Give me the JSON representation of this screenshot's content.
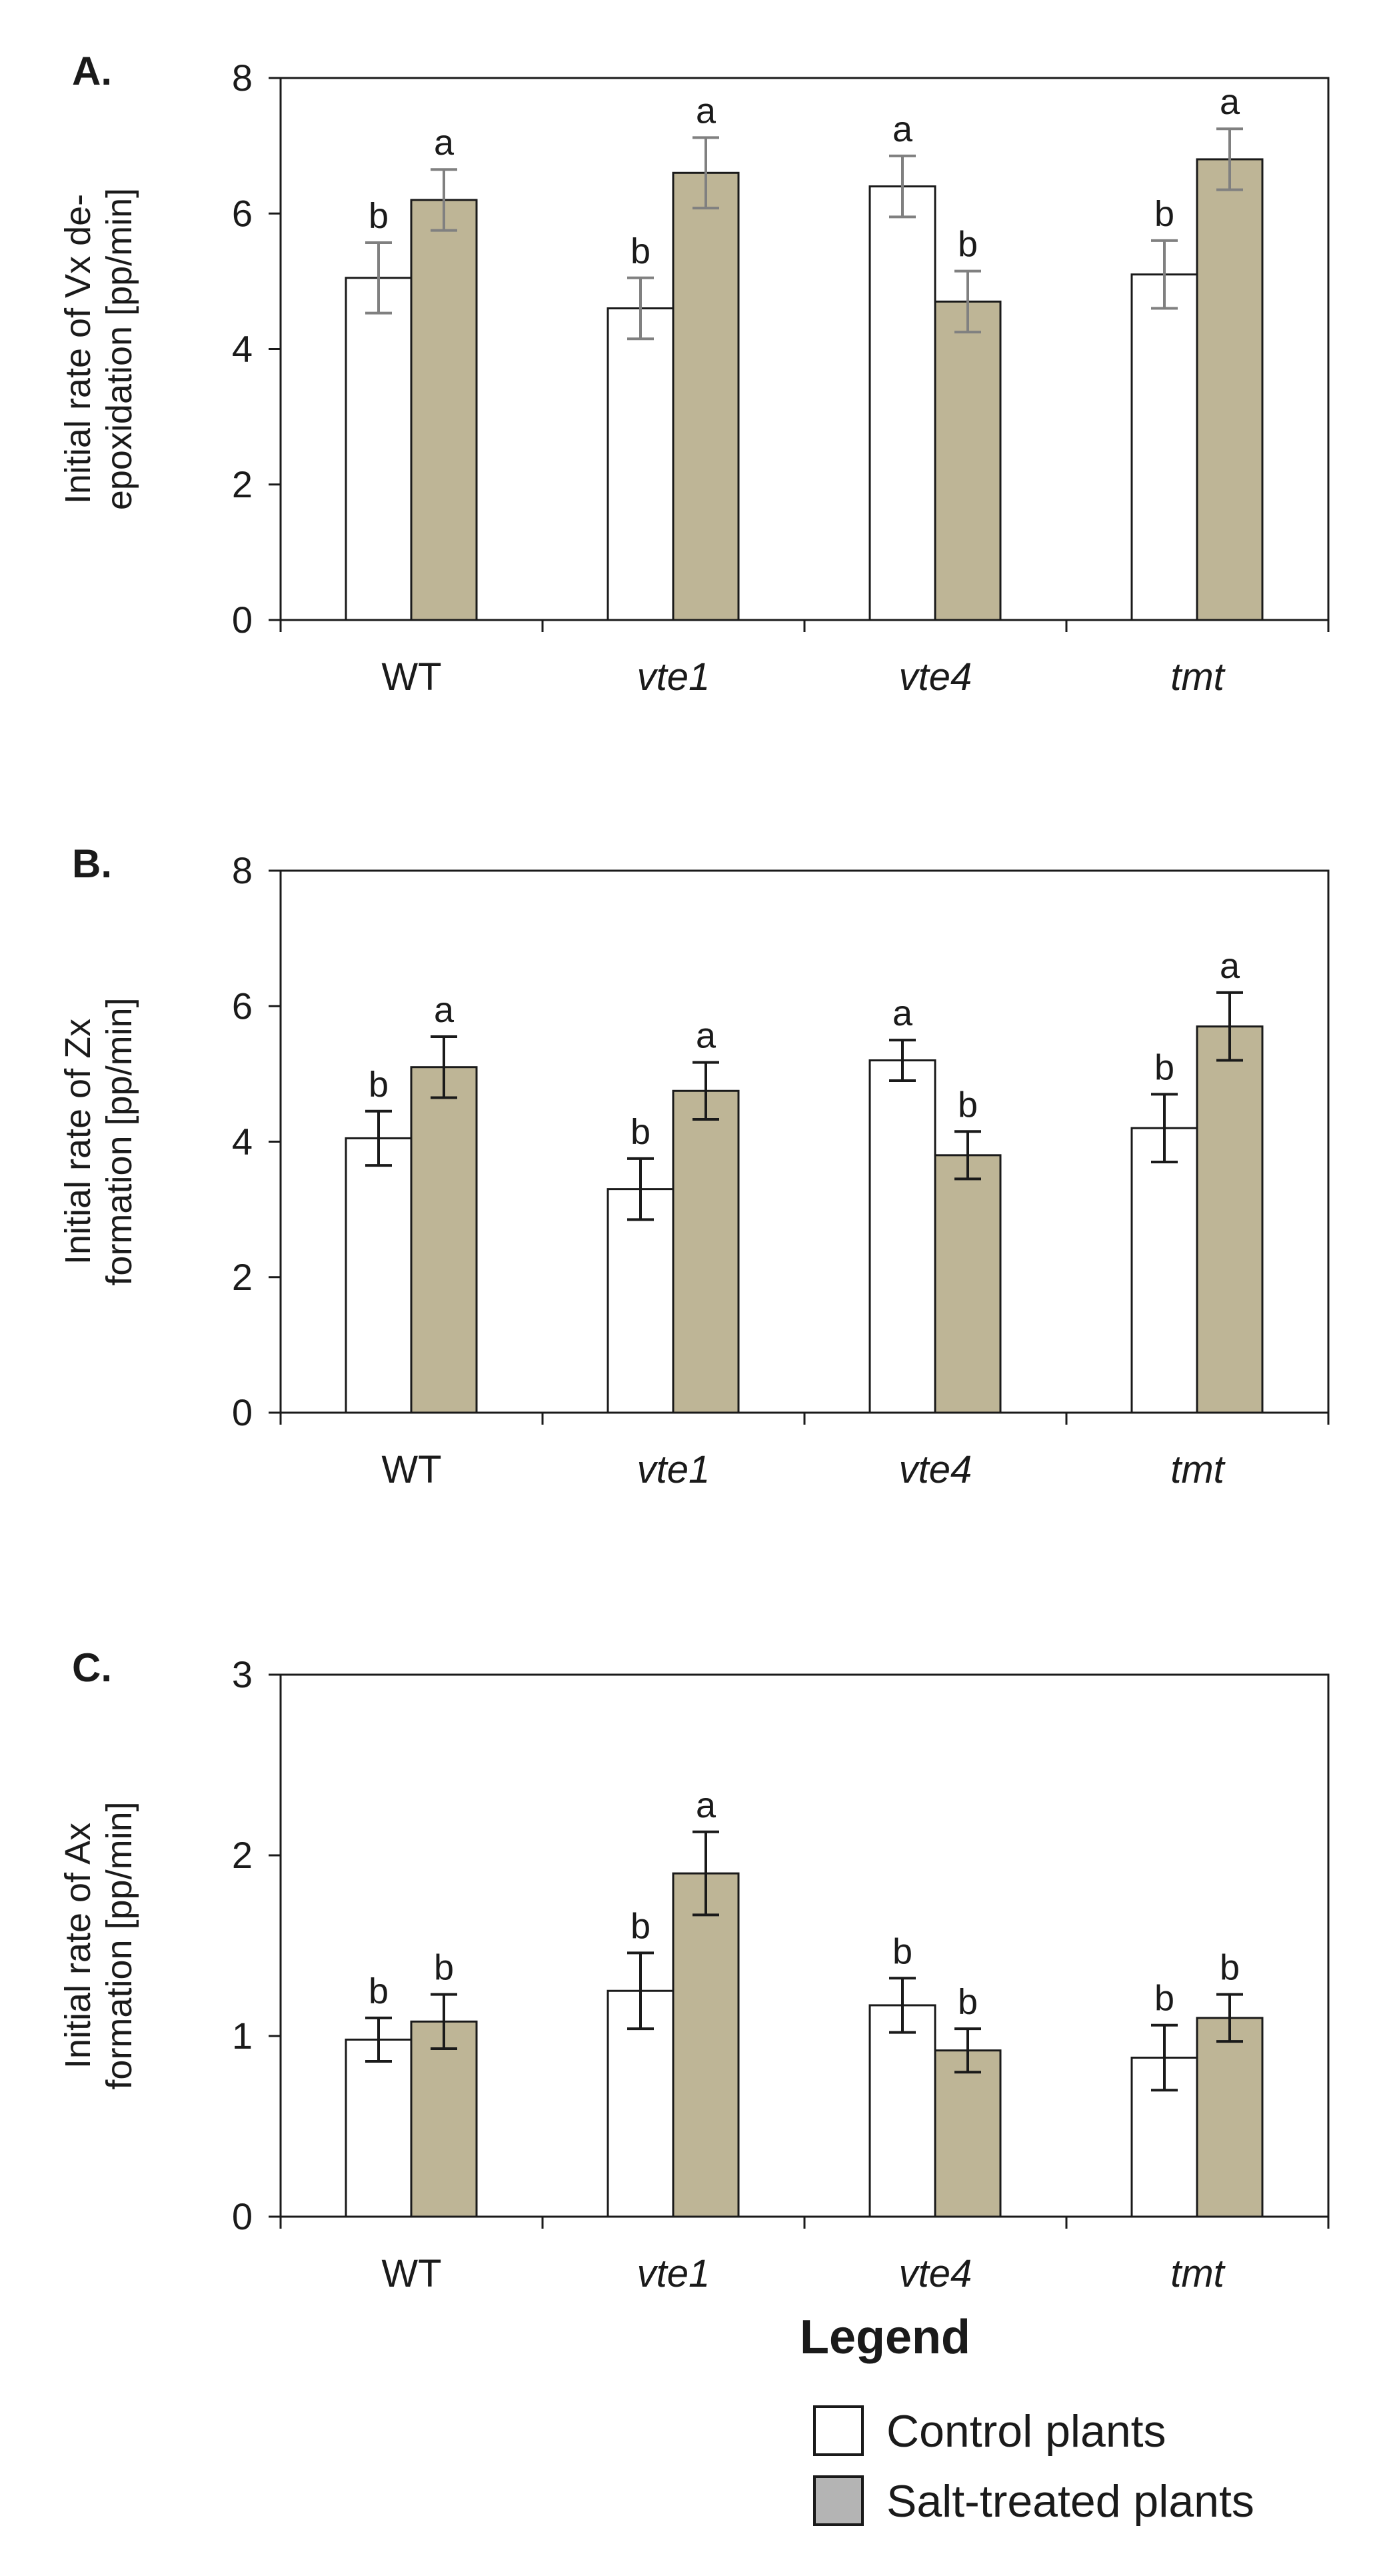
{
  "chart_data": [
    {
      "type": "bar",
      "panel": "A.",
      "ylabel_lines": [
        "Initial rate of  Vx de-",
        "epoxidation  [pp/min]"
      ],
      "ylim": [
        0,
        8
      ],
      "yticks": [
        0,
        2,
        4,
        6,
        8
      ],
      "tick_labels": [
        "0",
        "2",
        "4",
        "6",
        "8"
      ],
      "categories": [
        "WT",
        "vte1",
        "vte4",
        "tmt"
      ],
      "italic_categories": [
        false,
        true,
        true,
        true
      ],
      "series": [
        {
          "name": "Control plants",
          "values": [
            5.05,
            4.6,
            6.4,
            5.1
          ],
          "errors": [
            0.52,
            0.45,
            0.45,
            0.5
          ],
          "labels": [
            "b",
            "b",
            "a",
            "b"
          ],
          "color": "#ffffff"
        },
        {
          "name": "Salt-treated plants",
          "values": [
            6.2,
            6.6,
            4.7,
            6.8
          ],
          "errors": [
            0.45,
            0.52,
            0.45,
            0.45
          ],
          "labels": [
            "a",
            "a",
            "b",
            "a"
          ],
          "color": "#beb596"
        }
      ],
      "error_bar_color": "#808080"
    },
    {
      "type": "bar",
      "panel": "B.",
      "ylabel_lines": [
        "Initial rate of  Zx",
        "formation  [pp/min]"
      ],
      "ylim": [
        0,
        8
      ],
      "yticks": [
        0,
        2,
        4,
        6,
        8
      ],
      "tick_labels": [
        "0",
        "2",
        "4",
        "6",
        "8"
      ],
      "categories": [
        "WT",
        "vte1",
        "vte4",
        "tmt"
      ],
      "italic_categories": [
        false,
        true,
        true,
        true
      ],
      "series": [
        {
          "name": "Control plants",
          "values": [
            4.05,
            3.3,
            5.2,
            4.2
          ],
          "errors": [
            0.4,
            0.45,
            0.3,
            0.5
          ],
          "labels": [
            "b",
            "b",
            "a",
            "b"
          ],
          "color": "#ffffff"
        },
        {
          "name": "Salt-treated plants",
          "values": [
            5.1,
            4.75,
            3.8,
            5.7
          ],
          "errors": [
            0.45,
            0.42,
            0.35,
            0.5
          ],
          "labels": [
            "a",
            "a",
            "b",
            "a"
          ],
          "color": "#beb596"
        }
      ],
      "error_bar_color": "#1a1a1a"
    },
    {
      "type": "bar",
      "panel": "C.",
      "ylabel_lines": [
        "Initial rate of  Ax",
        "formation  [pp/min]"
      ],
      "ylim": [
        0,
        3
      ],
      "yticks": [
        0,
        1,
        2,
        3
      ],
      "tick_labels": [
        "0",
        "1",
        "2",
        "3"
      ],
      "categories": [
        "WT",
        "vte1",
        "vte4",
        "tmt"
      ],
      "italic_categories": [
        false,
        true,
        true,
        true
      ],
      "series": [
        {
          "name": "Control plants",
          "values": [
            0.98,
            1.25,
            1.17,
            0.88
          ],
          "errors": [
            0.12,
            0.21,
            0.15,
            0.18
          ],
          "labels": [
            "b",
            "b",
            "b",
            "b"
          ],
          "color": "#ffffff"
        },
        {
          "name": "Salt-treated plants",
          "values": [
            1.08,
            1.9,
            0.92,
            1.1
          ],
          "errors": [
            0.15,
            0.23,
            0.12,
            0.13
          ],
          "labels": [
            "b",
            "a",
            "b",
            "b"
          ],
          "color": "#beb596"
        }
      ],
      "error_bar_color": "#1a1a1a"
    }
  ],
  "legend": {
    "title": "Legend",
    "items": [
      {
        "label": "Control plants",
        "color": "#ffffff"
      },
      {
        "label": "Salt-treated plants",
        "color": "#b4b4b4"
      }
    ]
  }
}
